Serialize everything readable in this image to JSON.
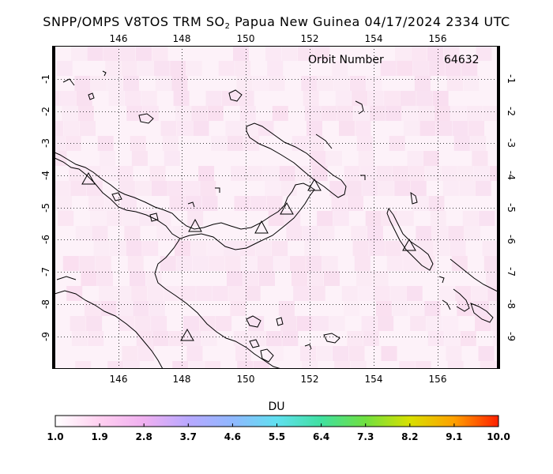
{
  "title": {
    "prefix": "SNPP/OMPS V8TOS TRM SO",
    "subscript": "2",
    "suffix": " Papua New Guinea 04/17/2024 2334 UTC"
  },
  "orbit": {
    "label": "Orbit Number",
    "value": "64632"
  },
  "map": {
    "lon_ticks": [
      "146",
      "148",
      "150",
      "152",
      "154",
      "156"
    ],
    "lat_ticks": [
      "-1",
      "-2",
      "-3",
      "-4",
      "-5",
      "-6",
      "-7",
      "-8",
      "-9"
    ],
    "volcano_icon": "triangle-outline",
    "coastline_color": "#000000",
    "pixel_tint_color": "#f7d6ec",
    "gridline_style": "dotted"
  },
  "colorbar": {
    "title": "DU",
    "labels": [
      "1.0",
      "1.9",
      "2.8",
      "3.7",
      "4.6",
      "5.5",
      "6.4",
      "7.3",
      "8.2",
      "9.1",
      "10.0"
    ],
    "colors": [
      "#ffffff",
      "#ffd0f0",
      "#e8b0ff",
      "#9fa6ff",
      "#7fd4ff",
      "#40e0c8",
      "#50e080",
      "#80e030",
      "#e0e000",
      "#ff9000",
      "#ff2000"
    ]
  }
}
